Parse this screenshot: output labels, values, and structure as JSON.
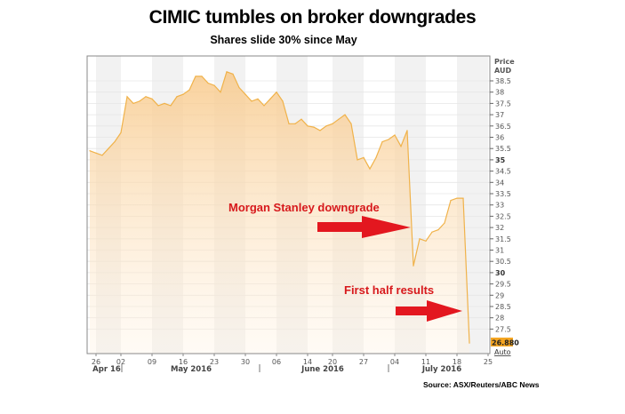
{
  "chart_data": {
    "type": "area",
    "title": "CIMIC tumbles on broker downgrades",
    "subtitle": "Shares slide 30% since May",
    "ylabel": "Price AUD",
    "ylabel_lines": [
      "Price",
      "AUD"
    ],
    "ylim": [
      26.6,
      39.6
    ],
    "yticks": [
      27.5,
      28,
      28.5,
      29,
      29.5,
      30,
      30.5,
      31,
      31.5,
      32,
      32.5,
      33,
      33.5,
      34,
      34.5,
      35,
      35.5,
      36,
      36.5,
      37,
      37.5,
      38,
      38.5
    ],
    "bold_yticks": [
      30,
      35
    ],
    "last_value_label": "26.880",
    "auto_label": "Auto",
    "xtick_labels": [
      "26",
      "02",
      "09",
      "16",
      "23",
      "30",
      "06",
      "14",
      "20",
      "27",
      "04",
      "11",
      "18",
      "25"
    ],
    "month_labels": [
      "Apr 16",
      "May 2016",
      "June 2016",
      "July 2016"
    ],
    "grid": true,
    "line_color": "#f0b24a",
    "fill_color": "#fbd9a8",
    "series": [
      {
        "dates": [
          "2016-04-22",
          "2016-04-26",
          "2016-04-27",
          "2016-04-28",
          "2016-04-29",
          "2016-05-02",
          "2016-05-03",
          "2016-05-04",
          "2016-05-05",
          "2016-05-06",
          "2016-05-09",
          "2016-05-10",
          "2016-05-11",
          "2016-05-12",
          "2016-05-13",
          "2016-05-16",
          "2016-05-17",
          "2016-05-18",
          "2016-05-19",
          "2016-05-20",
          "2016-05-23",
          "2016-05-24",
          "2016-05-25",
          "2016-05-26",
          "2016-05-27",
          "2016-05-30",
          "2016-05-31",
          "2016-06-01",
          "2016-06-02",
          "2016-06-03",
          "2016-06-06",
          "2016-06-07",
          "2016-06-08",
          "2016-06-09",
          "2016-06-10",
          "2016-06-14",
          "2016-06-15",
          "2016-06-16",
          "2016-06-17",
          "2016-06-20",
          "2016-06-21",
          "2016-06-22",
          "2016-06-23",
          "2016-06-24",
          "2016-06-27",
          "2016-06-28",
          "2016-06-29",
          "2016-06-30",
          "2016-07-01",
          "2016-07-04",
          "2016-07-05",
          "2016-07-06",
          "2016-07-07",
          "2016-07-08",
          "2016-07-11",
          "2016-07-12",
          "2016-07-13",
          "2016-07-14",
          "2016-07-15",
          "2016-07-18",
          "2016-07-19",
          "2016-07-20"
        ],
        "values": [
          35.4,
          35.3,
          35.2,
          35.5,
          35.8,
          36.2,
          37.8,
          37.5,
          37.6,
          37.8,
          37.7,
          37.4,
          37.5,
          37.4,
          37.8,
          37.9,
          38.1,
          38.7,
          38.7,
          38.4,
          38.3,
          38.0,
          38.9,
          38.8,
          38.2,
          37.9,
          37.6,
          37.7,
          37.4,
          37.7,
          38.0,
          37.6,
          36.6,
          36.6,
          36.8,
          36.5,
          36.45,
          36.3,
          36.5,
          36.6,
          36.8,
          37.0,
          36.6,
          35.0,
          35.1,
          34.6,
          35.1,
          35.8,
          35.9,
          36.1,
          35.6,
          36.3,
          30.3,
          31.5,
          31.4,
          31.8,
          31.9,
          32.2,
          33.2,
          33.3,
          33.3,
          26.88
        ]
      }
    ],
    "annotations": [
      {
        "text": "Morgan Stanley downgrade",
        "color": "#d7191c"
      },
      {
        "text": "First half results",
        "color": "#d7191c"
      }
    ],
    "source": "Source: ASX/Reuters/ABC News"
  }
}
